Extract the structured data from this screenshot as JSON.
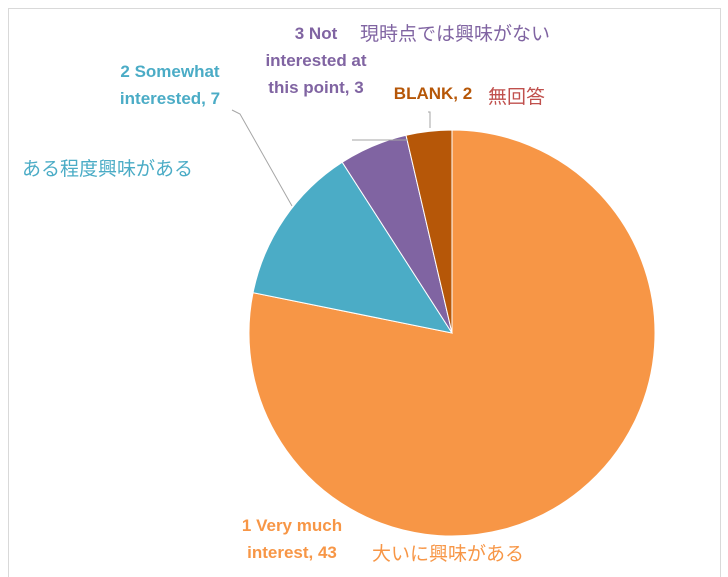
{
  "chart_data": {
    "type": "pie",
    "categories": [
      "1 Very much interest",
      "2 Somewhat interested",
      "3 Not interested at this point",
      "BLANK"
    ],
    "values": [
      43,
      7,
      3,
      2
    ],
    "value_labels": [
      "1 Very much interest, 43",
      "2 Somewhat interested, 7",
      "3 Not interested at this point, 3",
      "BLANK, 2"
    ],
    "colors": [
      "#F79646",
      "#4BACC6",
      "#8064A2",
      "#B65708"
    ],
    "annotations": [
      "大いに興味がある",
      "ある程度興味がある",
      "現時点では興味がない",
      "無回答"
    ]
  }
}
